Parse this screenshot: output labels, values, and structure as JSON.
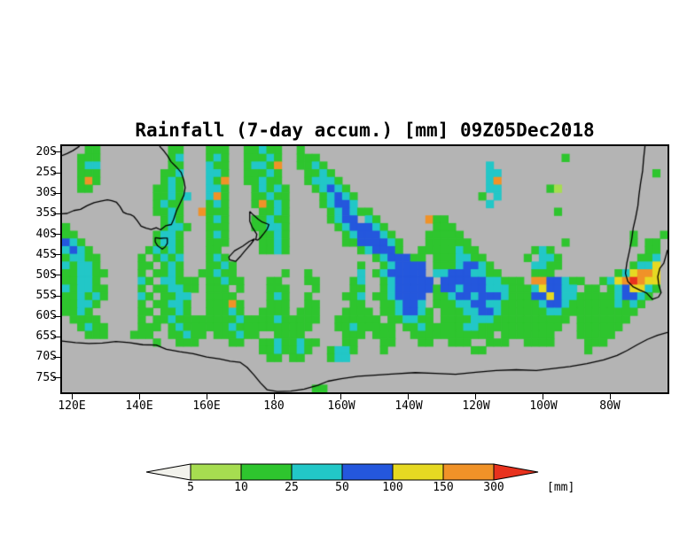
{
  "title": "Rainfall (7-day accum.) [mm] 09Z05Dec2018",
  "chart_data": {
    "type": "heatmap",
    "title": "Rainfall (7-day accum.) [mm] 09Z05Dec2018",
    "x_ticks": [
      "120E",
      "140E",
      "160E",
      "180",
      "160W",
      "140W",
      "120W",
      "100W",
      "80W"
    ],
    "y_ticks": [
      "20S",
      "25S",
      "30S",
      "35S",
      "40S",
      "45S",
      "50S",
      "55S",
      "60S",
      "65S",
      "70S",
      "75S"
    ],
    "lon_range_deg_east": [
      117,
      297
    ],
    "lat_range_deg_south": [
      18.5,
      78.5
    ],
    "unit": "mm",
    "levels_mm": [
      5,
      10,
      25,
      50,
      100,
      150,
      300
    ],
    "legend_position": "bottom",
    "grid_cols": 80,
    "grid_rows": 32,
    "cell_chars": {
      ".": "none or <5",
      "1": "5-10",
      "2": "10-25",
      "3": "25-50",
      "4": "50-100",
      "5": "100-150",
      "6": "150-300",
      "7": ">300"
    },
    "bin_colors": {
      "background_lt5": "#b4b4b4",
      "1": "#a6dd50",
      "2": "#2ec52e",
      "3": "#22c7c7",
      "4": "#2457dd",
      "5": "#e6d922",
      "6": "#f09228",
      "7": "#e8321e"
    },
    "rows": [
      [
        "...22.....",
        "....22...2",
        "22..22322.",
        ".2........",
        "..........",
        "..........",
        "..........",
        ".........."
      ],
      [
        "..222.....",
        "....23...2",
        "32..22232.",
        ".222......",
        "..........",
        "..........",
        "......2...",
        ".........."
      ],
      [
        "..233.....",
        "....22...3",
        "22..23326.",
        ".2232.....",
        "..........",
        "......3...",
        "..........",
        ".........."
      ],
      [
        "..222.....",
        "...223...3",
        "32..22232.",
        "..2232....",
        "..........",
        "......33..",
        "..........",
        "........2."
      ],
      [
        "..262.....",
        "...232...3",
        "26..22322.",
        "..23332...",
        "..........",
        "......36..",
        "..........",
        ".........."
      ],
      [
        "..22......",
        "..2232...3",
        "32...23232",
        "...23432..",
        "..........",
        "......33..",
        "....21....",
        ".........."
      ],
      [
        "..........",
        "..22323..3",
        "62...22322",
        "....23432.",
        "..........",
        ".....2.3..",
        "..........",
        ".........."
      ],
      [
        "..........",
        "..2322...2",
        "32...26232",
        "....23443.",
        "..........",
        "......3...",
        "..........",
        ".........."
      ],
      [
        "..........",
        "..2232..62",
        "22....2232",
        ".....23432",
        "2.........",
        "..........",
        ".....2....",
        ".........."
      ],
      [
        "..........",
        "...232...2",
        "32...22322",
        ".....2344.",
        "32......62",
        "2.........",
        "..........",
        ".........."
      ],
      [
        "2.........",
        "...2332..2",
        "22...22332",
        "......2344",
        "432......2",
        "22........",
        "..........",
        ".........."
      ],
      [
        "22........",
        "..2332...2",
        "32....2232",
        ".......234",
        "4432....22",
        "222.......",
        "..........",
        ".....2...2"
      ],
      [
        "432.......",
        "..2332...2",
        "22....2232",
        ".......224",
        "44432...22",
        "2222......",
        "......2...",
        ".....2.22."
      ],
      [
        "3432......",
        ".23232...2",
        "2.....2232",
        ".........2",
        "34442..222",
        "22322.....",
        "..232.....",
        ".......22."
      ],
      [
        "23322.....",
        "2.2323...2",
        "32........",
        "..........",
        ".2344422.2",
        "223322....",
        ".2.332....",
        "......223."
      ],
      [
        "32332.....",
        "22.232...2",
        "232.......",
        ".........2",
        "..234444.2",
        "2234432...",
        "..3322....",
        ".....2335."
      ],
      [
        "223322....",
        "2.2232..22",
        "322......2",
        "..2......3",
        ".2344444.3",
        "34443322..",
        "..222.....",
        "...235665."
      ],
      [
        "22332.....",
        "32.33222.2",
        "2322...22.",
        "..22....23",
        "..2344444.",
        "4444443322",
        "2.6644322.",
        ".23567655."
      ],
      [
        "323322....",
        "2.223322.2",
        "22.2...222",
        "...2....22",
        "..23444442",
        "4434443332",
        "22354433.2",
        "2.2345532."
      ],
      [
        "223232....",
        "32.2233..2",
        "222....232",
        "..2....223",
        ".2234444.2",
        "2344344432",
        "2244543322",
        "22234432.."
      ],
      [
        "22332.....",
        "2.22332..2",
        "2262...222",
        "..22....22",
        "..223443.2",
        "2233443322",
        "2223443222",
        "2223232..."
      ],
      [
        "2232......",
        "22.2232..2",
        "2232..2222",
        ".222...222",
        "2.2234432.",
        "2223344322",
        "2222332222",
        "222222...."
      ],
      [
        ".2222.....",
        "2.22322222",
        "2223222232",
        "2222..2222",
        "22.223322.",
        "2222333222",
        "2222222.22",
        "22222....."
      ],
      [
        "..2322....",
        "222.232222",
        "2232222222",
        "222...2232",
        "2222.22322",
        "2223322222",
        "222222..22",
        "2222......"
      ],
      [
        "...222...2",
        "22..22322.",
        "222322..22",
        "22.....222",
        ".222..2222",
        "2222222.22",
        "22222...22",
        "222......."
      ],
      [
        "..........",
        "..2..222..",
        "..22..2232",
        "2322...22.",
        "..22...22.",
        ".222..222.",
        ".2222....2",
        "22........"
      ],
      [
        "..........",
        "..........",
        "......2232",
        "232..2332.",
        "..2.......",
        "....22....",
        ".........2",
        ".........."
      ],
      [
        "..........",
        "..........",
        ".......22.",
        "22...233..",
        "..........",
        "..........",
        "..........",
        ".........."
      ],
      [
        "..........",
        "..........",
        "..........",
        "..........",
        "..........",
        "..........",
        "..........",
        ".........."
      ],
      [
        "..........",
        "..........",
        "..........",
        "..........",
        "..........",
        "..........",
        "..........",
        ".........."
      ],
      [
        "..........",
        "..........",
        "..........",
        "..........",
        "..........",
        "..........",
        "..........",
        ".........."
      ],
      [
        "..........",
        "..........",
        "..........",
        "...22.....",
        "..........",
        "..........",
        "..........",
        ".........."
      ]
    ]
  },
  "colorbar": {
    "labels": [
      "5",
      "10",
      "25",
      "50",
      "100",
      "150",
      "300"
    ],
    "unit": "[mm]",
    "colors": [
      "#f2f2ec",
      "#a6dd50",
      "#2ec52e",
      "#22c7c7",
      "#2457dd",
      "#e6d922",
      "#f09228",
      "#e8321e"
    ]
  },
  "map": {
    "background": "#b4b4b4",
    "coastline_color": "#000000",
    "coastlines": [
      {
        "name": "australia-northwest",
        "points": [
          [
            117,
            20.8
          ],
          [
            118.5,
            20.3
          ],
          [
            120.2,
            19.6
          ],
          [
            121.5,
            18.9
          ],
          [
            122.2,
            18.5
          ]
        ]
      },
      {
        "name": "australia-south-east",
        "points": [
          [
            117,
            35.0
          ],
          [
            118.5,
            34.9
          ],
          [
            120.5,
            34.2
          ],
          [
            122.5,
            33.9
          ],
          [
            124.5,
            33.0
          ],
          [
            126.5,
            32.3
          ],
          [
            128.5,
            31.9
          ],
          [
            130.5,
            31.6
          ],
          [
            131.8,
            31.8
          ],
          [
            133.2,
            32.2
          ],
          [
            134.2,
            33.2
          ],
          [
            135.2,
            34.6
          ],
          [
            136.2,
            35.0
          ],
          [
            137.4,
            35.2
          ],
          [
            138.3,
            35.6
          ],
          [
            139.3,
            36.6
          ],
          [
            140.5,
            38.0
          ],
          [
            142.0,
            38.5
          ],
          [
            143.5,
            38.8
          ],
          [
            145.0,
            38.4
          ],
          [
            146.3,
            38.9
          ],
          [
            147.8,
            37.9
          ],
          [
            149.5,
            37.6
          ],
          [
            150.2,
            36.3
          ],
          [
            151.0,
            34.3
          ],
          [
            152.0,
            32.6
          ],
          [
            153.2,
            30.5
          ],
          [
            153.6,
            28.6
          ],
          [
            153.2,
            26.8
          ],
          [
            152.4,
            24.9
          ],
          [
            150.9,
            23.5
          ],
          [
            149.4,
            22.3
          ],
          [
            148.4,
            20.9
          ],
          [
            147.3,
            19.7
          ],
          [
            146.3,
            18.8
          ],
          [
            146.0,
            18.5
          ]
        ]
      },
      {
        "name": "tasmania",
        "points": [
          [
            144.7,
            40.8
          ],
          [
            146.2,
            41.0
          ],
          [
            147.3,
            40.9
          ],
          [
            148.3,
            40.9
          ],
          [
            148.3,
            42.2
          ],
          [
            147.6,
            43.1
          ],
          [
            146.8,
            43.6
          ],
          [
            145.4,
            42.8
          ],
          [
            144.7,
            41.8
          ],
          [
            144.7,
            40.8
          ]
        ]
      },
      {
        "name": "new-zealand-north-island",
        "points": [
          [
            172.8,
            34.4
          ],
          [
            173.9,
            35.3
          ],
          [
            175.3,
            36.3
          ],
          [
            176.5,
            37.0
          ],
          [
            178.5,
            37.6
          ],
          [
            178.0,
            38.7
          ],
          [
            177.0,
            39.8
          ],
          [
            175.9,
            40.9
          ],
          [
            175.2,
            41.4
          ],
          [
            174.6,
            41.3
          ],
          [
            174.9,
            40.0
          ],
          [
            174.2,
            39.1
          ],
          [
            173.5,
            38.2
          ],
          [
            172.8,
            36.8
          ],
          [
            172.8,
            34.4
          ]
        ]
      },
      {
        "name": "new-zealand-south-island",
        "points": [
          [
            174.3,
            41.1
          ],
          [
            173.1,
            42.4
          ],
          [
            171.5,
            43.9
          ],
          [
            170.2,
            45.2
          ],
          [
            168.6,
            46.6
          ],
          [
            166.8,
            46.2
          ],
          [
            166.6,
            45.5
          ],
          [
            168.3,
            44.0
          ],
          [
            170.7,
            42.9
          ],
          [
            172.7,
            41.7
          ],
          [
            174.3,
            41.1
          ]
        ]
      },
      {
        "name": "antarctica",
        "points": [
          [
            117,
            66.0
          ],
          [
            121,
            66.4
          ],
          [
            125,
            66.6
          ],
          [
            129,
            66.5
          ],
          [
            133,
            66.1
          ],
          [
            137,
            66.4
          ],
          [
            141,
            66.9
          ],
          [
            145,
            67.0
          ],
          [
            148,
            68.0
          ],
          [
            152,
            68.6
          ],
          [
            156,
            69.1
          ],
          [
            160,
            69.9
          ],
          [
            164,
            70.4
          ],
          [
            167,
            70.9
          ],
          [
            170,
            71.2
          ],
          [
            172,
            72.4
          ],
          [
            174,
            74.2
          ],
          [
            176,
            76.2
          ],
          [
            178,
            77.9
          ],
          [
            181,
            78.3
          ],
          [
            185,
            78.2
          ],
          [
            189,
            77.7
          ],
          [
            193,
            76.8
          ],
          [
            196,
            75.8
          ],
          [
            200,
            75.2
          ],
          [
            205,
            74.6
          ],
          [
            210,
            74.3
          ],
          [
            216,
            74.0
          ],
          [
            222,
            73.7
          ],
          [
            228,
            73.9
          ],
          [
            234,
            74.1
          ],
          [
            240,
            73.6
          ],
          [
            246,
            73.2
          ],
          [
            252,
            73.0
          ],
          [
            258,
            73.2
          ],
          [
            263,
            72.7
          ],
          [
            268,
            72.2
          ],
          [
            273,
            71.5
          ],
          [
            278,
            70.6
          ],
          [
            282,
            69.5
          ],
          [
            285,
            68.3
          ],
          [
            288,
            66.9
          ],
          [
            291,
            65.6
          ],
          [
            294,
            64.6
          ],
          [
            297,
            63.9
          ]
        ]
      },
      {
        "name": "south-america",
        "points": [
          [
            290.3,
            18.5
          ],
          [
            289.9,
            21.5
          ],
          [
            289.6,
            24.5
          ],
          [
            289.0,
            27.5
          ],
          [
            288.5,
            30.5
          ],
          [
            288.2,
            33.0
          ],
          [
            287.5,
            36.0
          ],
          [
            286.8,
            38.5
          ],
          [
            286.4,
            41.0
          ],
          [
            285.7,
            44.0
          ],
          [
            284.9,
            47.0
          ],
          [
            284.5,
            49.5
          ],
          [
            285.2,
            51.5
          ],
          [
            286.8,
            52.8
          ],
          [
            288.8,
            53.6
          ],
          [
            290.8,
            54.3
          ],
          [
            292.5,
            55.8
          ],
          [
            294.3,
            55.3
          ],
          [
            295.1,
            54.2
          ],
          [
            294.4,
            52.3
          ],
          [
            294.1,
            50.3
          ],
          [
            294.7,
            48.3
          ],
          [
            295.9,
            47.0
          ],
          [
            296.5,
            45.3
          ],
          [
            297.0,
            43.8
          ]
        ]
      }
    ]
  }
}
